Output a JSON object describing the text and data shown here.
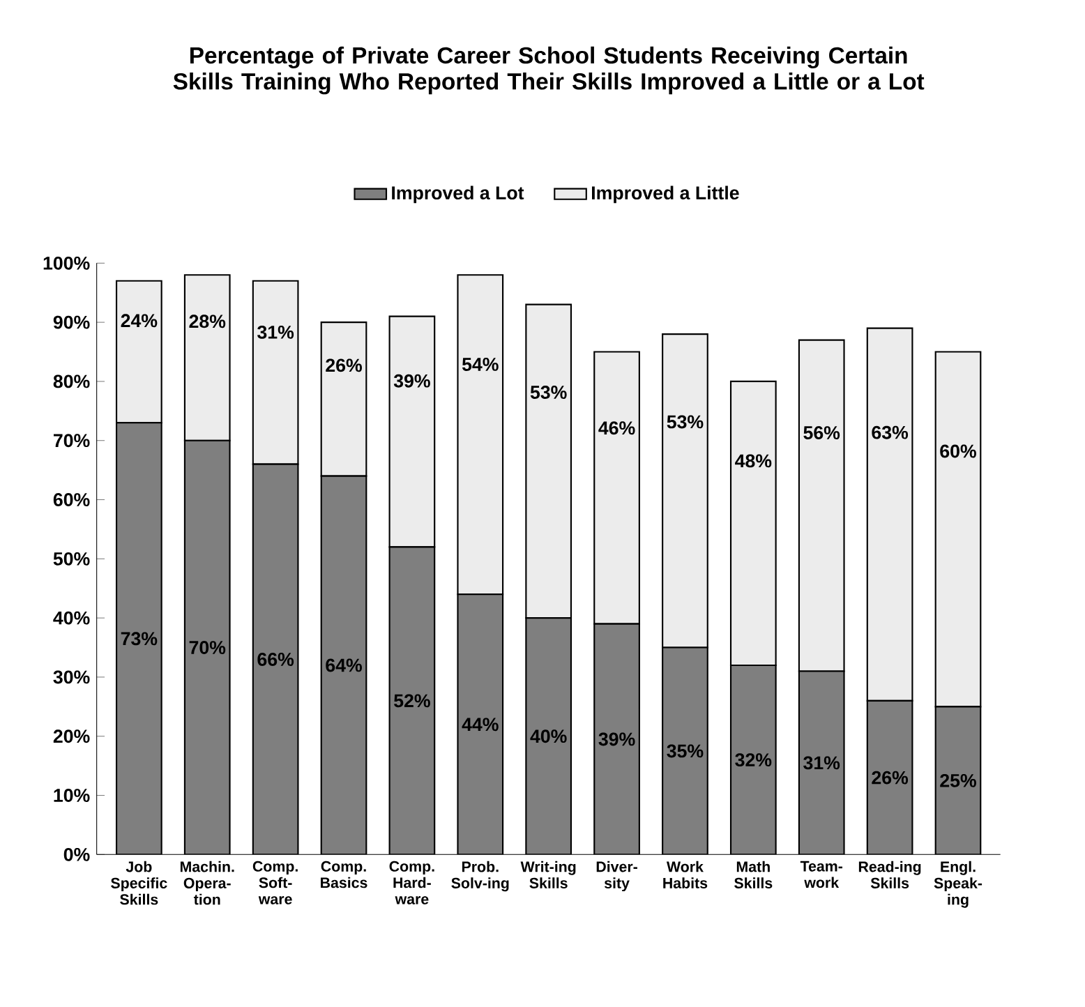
{
  "chart_data": {
    "type": "bar",
    "stacked": true,
    "title": "Percentage of Private Career School Students Receiving Certain Skills Training Who Reported Their Skills Improved a Little or a Lot",
    "categories": [
      "Job Specific Skills",
      "Machin. Opera-tion",
      "Comp. Soft-ware",
      "Comp. Basics",
      "Comp. Hard-ware",
      "Prob. Solv-ing",
      "Writ-ing Skills",
      "Diver-sity",
      "Work Habits",
      "Math Skills",
      "Team-work",
      "Read-ing Skills",
      "Engl. Speak-ing"
    ],
    "series": [
      {
        "name": "Improved a Lot",
        "color": "#7f7f7f",
        "values": [
          73,
          70,
          66,
          64,
          52,
          44,
          40,
          39,
          35,
          32,
          31,
          26,
          25
        ],
        "value_labels": [
          "73%",
          "70%",
          "66%",
          "64%",
          "52%",
          "44%",
          "40%",
          "39%",
          "35%",
          "32%",
          "31%",
          "26%",
          "25%"
        ]
      },
      {
        "name": "Improved a Little",
        "color": "#ececec",
        "values": [
          24,
          28,
          31,
          26,
          39,
          54,
          53,
          46,
          53,
          48,
          56,
          63,
          60
        ],
        "value_labels": [
          "24%",
          "28%",
          "31%",
          "26%",
          "39%",
          "54%",
          "53%",
          "46%",
          "53%",
          "48%",
          "56%",
          "63%",
          "60%"
        ]
      }
    ],
    "ylim": [
      0,
      100
    ],
    "yticks": [
      {
        "value": 0,
        "label": "0%"
      },
      {
        "value": 10,
        "label": "10%"
      },
      {
        "value": 20,
        "label": "20%"
      },
      {
        "value": 30,
        "label": "30%"
      },
      {
        "value": 40,
        "label": "40%"
      },
      {
        "value": 50,
        "label": "50%"
      },
      {
        "value": 60,
        "label": "60%"
      },
      {
        "value": 70,
        "label": "70%"
      },
      {
        "value": 80,
        "label": "80%"
      },
      {
        "value": 90,
        "label": "90%"
      },
      {
        "value": 100,
        "label": "100%"
      }
    ],
    "legend": "top"
  }
}
